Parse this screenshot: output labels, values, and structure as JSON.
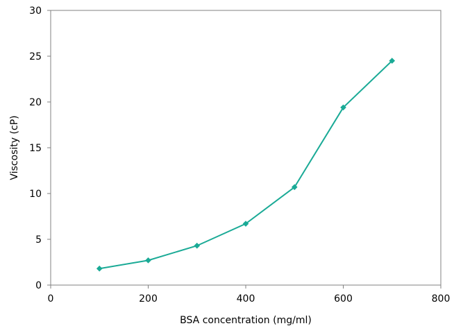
{
  "chart_data": {
    "type": "line",
    "xlabel": "BSA concentration (mg/ml)",
    "ylabel": "Viscosity (cP)",
    "xlim": [
      0,
      800
    ],
    "ylim": [
      0,
      30
    ],
    "x_ticks": [
      0,
      200,
      400,
      600,
      800
    ],
    "y_ticks": [
      0,
      5,
      10,
      15,
      20,
      25,
      30
    ],
    "x_tick_labels": [
      "0",
      "200",
      "400",
      "600",
      "800"
    ],
    "y_tick_labels": [
      "0",
      "5",
      "10",
      "15",
      "20",
      "25",
      "30"
    ],
    "grid": false,
    "legend": "none",
    "series": [
      {
        "color": "#1aaa96",
        "marker": "diamond",
        "x": [
          100,
          200,
          300,
          400,
          500,
          600,
          700
        ],
        "y": [
          1.8,
          2.7,
          4.3,
          6.7,
          10.7,
          19.4,
          24.5
        ]
      }
    ]
  }
}
